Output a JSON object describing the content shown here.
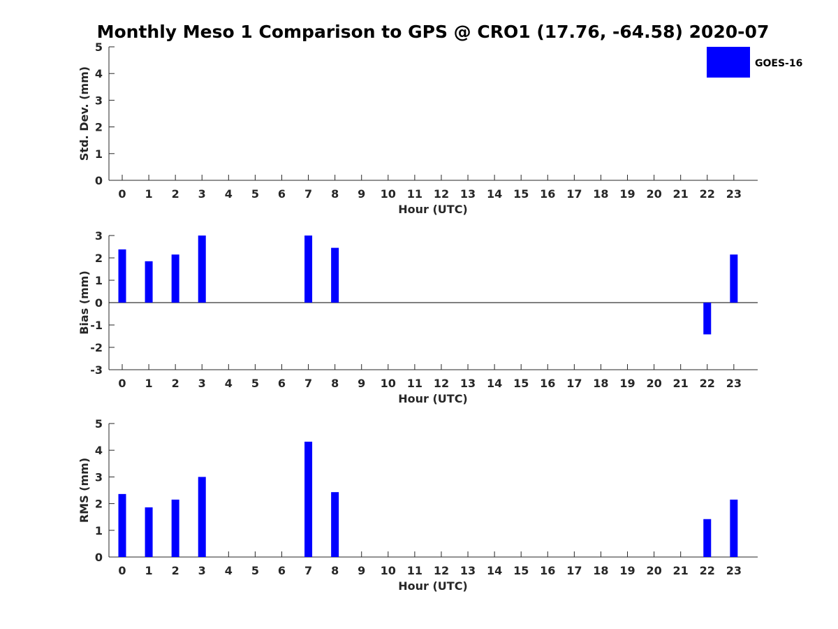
{
  "chart_data": {
    "title": "Monthly Meso 1 Comparison to GPS @ CRO1 (17.76, -64.58) 2020-07",
    "legend": {
      "label": "GOES-16",
      "color": "#0000ff",
      "placement": "top-right"
    },
    "panels": [
      {
        "id": "stddev",
        "type": "bar",
        "ylabel": "Std. Dev. (mm)",
        "xlabel": "Hour (UTC)",
        "ylim": [
          0,
          5
        ],
        "yticks": [
          "0",
          "1",
          "2",
          "3",
          "4",
          "5"
        ],
        "x": [],
        "values": [],
        "zero_line": false
      },
      {
        "id": "bias",
        "type": "bar",
        "ylabel": "Bias (mm)",
        "xlabel": "Hour (UTC)",
        "ylim": [
          -3,
          3
        ],
        "yticks": [
          "-3",
          "-2",
          "-1",
          "0",
          "1",
          "2",
          "3"
        ],
        "x": [
          0,
          1,
          2,
          3,
          7,
          8,
          22,
          23
        ],
        "values": [
          2.38,
          1.85,
          2.15,
          3.0,
          3.0,
          2.45,
          -1.42,
          2.15
        ],
        "zero_line": true
      },
      {
        "id": "rms",
        "type": "bar",
        "ylabel": "RMS (mm)",
        "xlabel": "Hour (UTC)",
        "ylim": [
          0,
          5
        ],
        "yticks": [
          "0",
          "1",
          "2",
          "3",
          "4",
          "5"
        ],
        "x": [
          0,
          1,
          2,
          3,
          7,
          8,
          22,
          23
        ],
        "values": [
          2.36,
          1.86,
          2.15,
          3.0,
          4.32,
          2.43,
          1.42,
          2.15
        ],
        "zero_line": false
      }
    ],
    "xticks": [
      "0",
      "1",
      "2",
      "3",
      "4",
      "5",
      "6",
      "7",
      "8",
      "9",
      "10",
      "11",
      "12",
      "13",
      "14",
      "15",
      "16",
      "17",
      "18",
      "19",
      "20",
      "21",
      "22",
      "23"
    ]
  }
}
